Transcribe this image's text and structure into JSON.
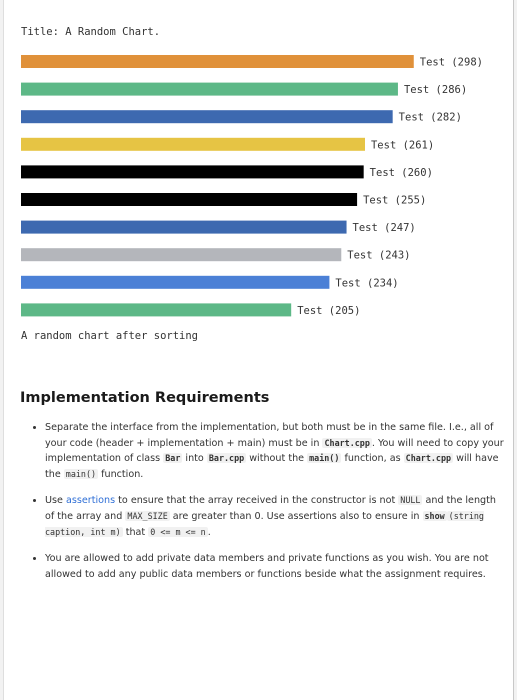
{
  "chart_data": {
    "type": "bar",
    "orientation": "horizontal",
    "title": "Title: A Random Chart.",
    "caption": "A random chart after sorting",
    "categories": [
      "Test",
      "Test",
      "Test",
      "Test",
      "Test",
      "Test",
      "Test",
      "Test",
      "Test",
      "Test"
    ],
    "values": [
      298,
      286,
      282,
      261,
      260,
      255,
      247,
      243,
      234,
      205
    ],
    "labels": [
      "Test (298)",
      "Test (286)",
      "Test (282)",
      "Test (261)",
      "Test (260)",
      "Test (255)",
      "Test (247)",
      "Test (243)",
      "Test (234)",
      "Test (205)"
    ],
    "colors": [
      "#e0913a",
      "#5db887",
      "#3d69b0",
      "#e6c444",
      "#000000",
      "#000000",
      "#3d69b0",
      "#b4b6bb",
      "#4b80d6",
      "#5db887"
    ]
  },
  "doc": {
    "heading": "Implementation Requirements",
    "items": [
      {
        "t1": "Separate the interface from the implementation, but both must be in the same file. I.e., all of your code (header + implementation + main) must be in ",
        "c1": "Chart.cpp",
        "t2": ". You will need to copy your implementation of class ",
        "c2": "Bar",
        "t3": " into ",
        "c3": "Bar.cpp",
        "t4": " without the ",
        "c4": "main()",
        "t5": " function, as ",
        "c5": "Chart.cpp",
        "t6": " will have the ",
        "c6": "main()",
        "t7": " function."
      },
      {
        "t1": "Use ",
        "link": "assertions",
        "t2": " to ensure that the array received in the constructor is not ",
        "c1": "NULL",
        "t3": " and the length of the array and ",
        "c2": "MAX_SIZE",
        "t4": " are greater than 0. Use assertions also to ensure in ",
        "c3": "show",
        "c4": "(string caption, int m)",
        "t5": " that ",
        "c5": "0 <= m <= n",
        "t6": "."
      },
      {
        "t1": "You are allowed to add private data members and private functions as you wish. You are not allowed to add any public data members or functions beside what the assignment requires."
      }
    ]
  }
}
